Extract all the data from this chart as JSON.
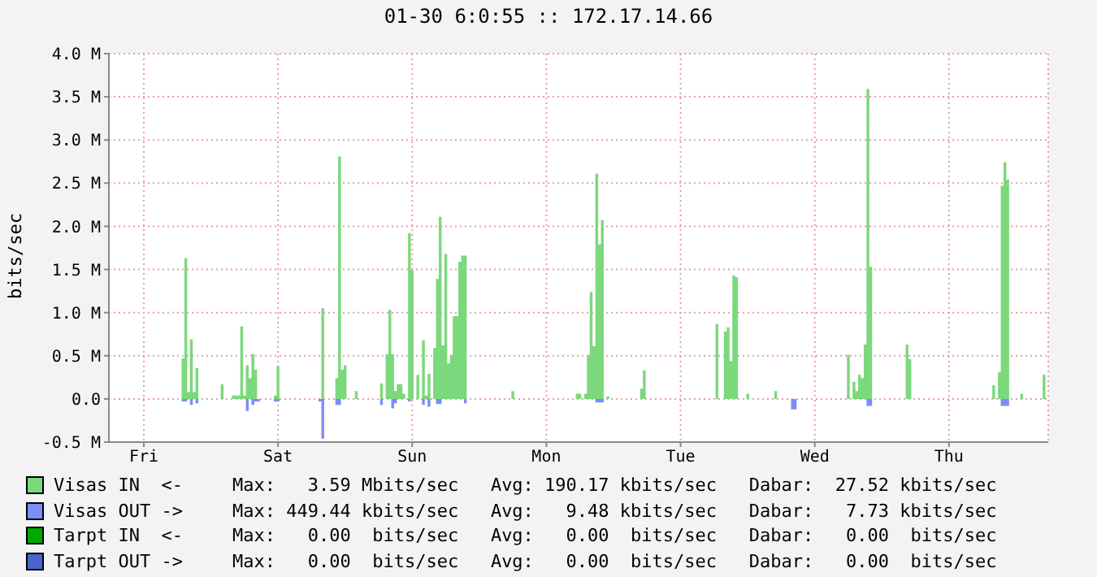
{
  "chart_data": {
    "type": "area",
    "title": "01-30 6:0:55 :: 172.17.14.66",
    "ylabel": "bits/sec",
    "categories": [
      null,
      null,
      null,
      null,
      null,
      null,
      null,
      null,
      null,
      null,
      null,
      null,
      "Fri",
      null,
      null,
      null,
      null,
      null,
      null,
      null,
      null,
      null,
      null,
      null,
      null,
      null,
      null,
      null,
      null,
      null,
      null,
      null,
      null,
      null,
      null,
      null,
      null,
      null,
      null,
      null,
      null,
      null,
      null,
      null,
      null,
      null,
      null,
      null,
      null,
      null,
      null,
      null,
      null,
      null,
      null,
      null,
      null,
      null,
      null,
      null,
      "Sat",
      null,
      null,
      null,
      null,
      null,
      null,
      null,
      null,
      null,
      null,
      null,
      null,
      null,
      null,
      null,
      null,
      null,
      null,
      null,
      null,
      null,
      null,
      null,
      null,
      null,
      null,
      null,
      null,
      null,
      null,
      null,
      null,
      null,
      null,
      null,
      null,
      null,
      null,
      null,
      null,
      null,
      null,
      null,
      null,
      null,
      null,
      null,
      "Sun",
      null,
      null,
      null,
      null,
      null,
      null,
      null,
      null,
      null,
      null,
      null,
      null,
      null,
      null,
      null,
      null,
      null,
      null,
      null,
      null,
      null,
      null,
      null,
      null,
      null,
      null,
      null,
      null,
      null,
      null,
      null,
      null,
      null,
      null,
      null,
      null,
      null,
      null,
      null,
      null,
      null,
      null,
      null,
      null,
      null,
      null,
      null,
      "Mon",
      null,
      null,
      null,
      null,
      null,
      null,
      null,
      null,
      null,
      null,
      null,
      null,
      null,
      null,
      null,
      null,
      null,
      null,
      null,
      null,
      null,
      null,
      null,
      null,
      null,
      null,
      null,
      null,
      null,
      null,
      null,
      null,
      null,
      null,
      null,
      null,
      null,
      null,
      null,
      null,
      null,
      null,
      null,
      null,
      null,
      null,
      null,
      "Tue",
      null,
      null,
      null,
      null,
      null,
      null,
      null,
      null,
      null,
      null,
      null,
      null,
      null,
      null,
      null,
      null,
      null,
      null,
      null,
      null,
      null,
      null,
      null,
      null,
      null,
      null,
      null,
      null,
      null,
      null,
      null,
      null,
      null,
      null,
      null,
      null,
      null,
      null,
      null,
      null,
      null,
      null,
      null,
      null,
      null,
      null,
      null,
      "Wed",
      null,
      null,
      null,
      null,
      null,
      null,
      null,
      null,
      null,
      null,
      null,
      null,
      null,
      null,
      null,
      null,
      null,
      null,
      null,
      null,
      null,
      null,
      null,
      null,
      null,
      null,
      null,
      null,
      null,
      null,
      null,
      null,
      null,
      null,
      null,
      null,
      null,
      null,
      null,
      null,
      null,
      null,
      null,
      null,
      null,
      null,
      null,
      "Thu",
      null,
      null,
      null,
      null,
      null,
      null,
      null,
      null,
      null,
      null,
      null,
      null,
      null,
      null,
      null,
      null,
      null,
      null,
      null,
      null,
      null,
      null,
      null,
      null,
      null,
      null,
      null,
      null,
      null,
      null,
      null,
      null,
      null,
      null,
      null
    ],
    "ylim": [
      -500000,
      4000000
    ],
    "yticks": [
      {
        "value": -500000,
        "label": "-0.5 M"
      },
      {
        "value": 0,
        "label": "0.0"
      },
      {
        "value": 500000,
        "label": "0.5 M"
      },
      {
        "value": 1000000,
        "label": "1.0 M"
      },
      {
        "value": 1500000,
        "label": "1.5 M"
      },
      {
        "value": 2000000,
        "label": "2.0 M"
      },
      {
        "value": 2500000,
        "label": "2.5 M"
      },
      {
        "value": 3000000,
        "label": "3.0 M"
      },
      {
        "value": 3500000,
        "label": "3.5 M"
      },
      {
        "value": 4000000,
        "label": "4.0 M"
      }
    ],
    "grid": true,
    "legend": "bottom",
    "series": [
      {
        "name": "Visas IN  <-",
        "color": "#7cd87c",
        "values": [
          0,
          0,
          0,
          0,
          0,
          0,
          0,
          0,
          0,
          0,
          0,
          0,
          0,
          0,
          0,
          0,
          0,
          0,
          0,
          0,
          0,
          0,
          0,
          0,
          0,
          0,
          470000,
          1630000,
          80000,
          690000,
          80000,
          360000,
          0,
          0,
          0,
          0,
          0,
          0,
          0,
          0,
          170000,
          0,
          0,
          0,
          40000,
          40000,
          40000,
          840000,
          40000,
          390000,
          240000,
          520000,
          340000,
          0,
          0,
          0,
          0,
          0,
          0,
          40000,
          380000,
          0,
          0,
          0,
          0,
          0,
          0,
          0,
          0,
          0,
          0,
          0,
          0,
          0,
          0,
          0,
          1050000,
          0,
          0,
          0,
          0,
          240000,
          2810000,
          340000,
          390000,
          0,
          0,
          0,
          90000,
          0,
          0,
          0,
          0,
          0,
          0,
          0,
          0,
          180000,
          0,
          520000,
          1030000,
          520000,
          90000,
          170000,
          170000,
          60000,
          0,
          1920000,
          1490000,
          0,
          280000,
          0,
          680000,
          40000,
          290000,
          0,
          590000,
          1390000,
          2110000,
          620000,
          1680000,
          410000,
          510000,
          960000,
          960000,
          1590000,
          1660000,
          1660000,
          0,
          0,
          0,
          0,
          0,
          0,
          0,
          0,
          0,
          0,
          0,
          0,
          0,
          0,
          0,
          0,
          90000,
          0,
          0,
          0,
          0,
          0,
          0,
          0,
          0,
          0,
          0,
          0,
          0,
          0,
          0,
          0,
          0,
          0,
          0,
          0,
          0,
          0,
          0,
          60000,
          60000,
          0,
          60000,
          510000,
          1240000,
          610000,
          2610000,
          1790000,
          2070000,
          0,
          30000,
          0,
          0,
          0,
          0,
          0,
          0,
          0,
          0,
          0,
          0,
          0,
          120000,
          330000,
          0,
          0,
          0,
          0,
          0,
          0,
          0,
          0,
          0,
          0,
          0,
          0,
          0,
          0,
          0,
          0,
          0,
          0,
          0,
          0,
          0,
          0,
          0,
          0,
          0,
          870000,
          0,
          0,
          780000,
          830000,
          440000,
          1430000,
          1410000,
          0,
          0,
          0,
          60000,
          0,
          0,
          0,
          0,
          0,
          0,
          0,
          0,
          0,
          90000,
          0,
          0,
          0,
          0,
          0,
          0,
          0,
          0,
          0,
          0,
          0,
          0,
          0,
          0,
          0,
          0,
          0,
          0,
          0,
          0,
          0,
          0,
          0,
          0,
          0,
          510000,
          0,
          200000,
          90000,
          280000,
          240000,
          630000,
          3590000,
          1530000,
          0,
          0,
          0,
          0,
          0,
          0,
          0,
          0,
          0,
          0,
          0,
          0,
          630000,
          460000,
          0,
          0,
          0,
          0,
          0,
          0,
          0,
          0,
          0,
          0,
          0,
          0,
          0,
          0,
          0,
          0,
          0,
          0,
          0,
          0,
          0,
          0,
          0,
          0,
          0,
          0,
          0,
          0,
          0,
          160000,
          0,
          310000,
          2470000,
          2740000,
          2540000,
          0,
          0,
          0,
          0,
          60000,
          0,
          0,
          0,
          0,
          0,
          0,
          0,
          280000,
          0
        ]
      },
      {
        "name": "Visas OUT ->",
        "color": "#7b8ef5",
        "values": [
          0,
          0,
          0,
          0,
          0,
          0,
          0,
          0,
          0,
          0,
          0,
          0,
          0,
          0,
          0,
          0,
          0,
          0,
          0,
          0,
          0,
          0,
          0,
          0,
          0,
          0,
          -30000,
          -30000,
          0,
          -70000,
          0,
          -50000,
          0,
          0,
          0,
          0,
          0,
          0,
          0,
          0,
          0,
          0,
          0,
          0,
          0,
          0,
          0,
          0,
          0,
          -140000,
          0,
          -70000,
          -30000,
          -30000,
          0,
          0,
          0,
          0,
          0,
          -30000,
          -30000,
          0,
          0,
          0,
          0,
          0,
          0,
          0,
          0,
          0,
          0,
          0,
          0,
          0,
          0,
          -30000,
          -460000,
          0,
          0,
          0,
          0,
          -70000,
          -70000,
          0,
          0,
          0,
          0,
          0,
          0,
          0,
          0,
          0,
          0,
          0,
          0,
          0,
          0,
          -70000,
          0,
          0,
          0,
          -110000,
          -50000,
          0,
          0,
          0,
          0,
          -30000,
          0,
          0,
          0,
          0,
          -70000,
          0,
          -90000,
          0,
          0,
          -60000,
          -60000,
          0,
          0,
          0,
          0,
          0,
          0,
          0,
          0,
          -50000,
          0,
          0,
          0,
          0,
          0,
          0,
          0,
          0,
          0,
          0,
          0,
          0,
          0,
          0,
          0,
          0,
          0,
          0,
          0,
          0,
          0,
          0,
          0,
          0,
          0,
          0,
          0,
          0,
          0,
          0,
          0,
          0,
          0,
          0,
          0,
          0,
          0,
          0,
          0,
          0,
          0,
          0,
          0,
          0,
          0,
          0,
          -40000,
          -40000,
          -40000,
          0,
          0,
          0,
          0,
          0,
          0,
          0,
          0,
          0,
          0,
          0,
          0,
          0,
          0,
          0,
          0,
          0,
          0,
          0,
          0,
          0,
          0,
          0,
          0,
          0,
          0,
          0,
          0,
          0,
          0,
          0,
          0,
          0,
          0,
          0,
          0,
          0,
          0,
          0,
          0,
          0,
          0,
          0,
          0,
          0,
          0,
          0,
          0,
          0,
          0,
          0,
          0,
          0,
          0,
          0,
          0,
          0,
          0,
          0,
          0,
          0,
          0,
          0,
          0,
          0,
          0,
          0,
          -120000,
          -120000,
          0,
          0,
          0,
          0,
          0,
          0,
          0,
          0,
          0,
          0,
          0,
          0,
          0,
          0,
          0,
          0,
          0,
          0,
          0,
          0,
          0,
          0,
          0,
          0,
          0,
          -80000,
          -80000,
          0,
          0,
          0,
          0,
          0,
          0,
          0,
          0,
          0,
          0,
          0,
          0,
          0,
          0,
          0,
          0,
          0,
          0,
          0,
          0,
          0,
          0,
          0,
          0,
          0,
          0,
          0,
          0,
          0,
          0,
          0,
          0,
          0,
          0,
          0,
          0,
          0,
          0,
          0,
          0,
          0,
          0,
          0,
          0,
          0,
          0,
          -80000,
          -80000,
          -80000,
          0,
          0,
          0,
          0,
          0,
          0,
          0,
          0,
          0,
          0,
          0,
          0,
          0,
          0
        ]
      },
      {
        "name": "Tarpt IN  <-",
        "color": "#00a800",
        "values": [
          null,
          null,
          null,
          null,
          null,
          null,
          null,
          null,
          null,
          null,
          null,
          null,
          null,
          null,
          null,
          null,
          null,
          null,
          null,
          null,
          null,
          null,
          null,
          null,
          null,
          null,
          null,
          null,
          null,
          null,
          null,
          null,
          null,
          null,
          null,
          null,
          null,
          null,
          null,
          null,
          null,
          null,
          null,
          null,
          null,
          null,
          null,
          null,
          null,
          null,
          null,
          null,
          null,
          null,
          null,
          null,
          null,
          null,
          null,
          null,
          null,
          null,
          null,
          null,
          null,
          null,
          null,
          null,
          null,
          null,
          null,
          null,
          null,
          null,
          null,
          null,
          null,
          null,
          null,
          null,
          null,
          null,
          null,
          null,
          null,
          null,
          null,
          null,
          null,
          null,
          null,
          null,
          null,
          null,
          null,
          null,
          null,
          null,
          null,
          null,
          null,
          null,
          null,
          null,
          null,
          null,
          null,
          null,
          null,
          null,
          null,
          null,
          null,
          null,
          null,
          null,
          null,
          null,
          null,
          null,
          null,
          null,
          null,
          null,
          null,
          null,
          null,
          null,
          null,
          null,
          null,
          null,
          null,
          null,
          null,
          null,
          null,
          null,
          null,
          null,
          null,
          null,
          null,
          null,
          null,
          null,
          null,
          null,
          null,
          null,
          null,
          null,
          null,
          null,
          null,
          null,
          null,
          null,
          null,
          null,
          null,
          null,
          null,
          null,
          null,
          null,
          null,
          null,
          null,
          null,
          null,
          null,
          null,
          null,
          null,
          null,
          null,
          null,
          null,
          null,
          null,
          null,
          null,
          null,
          null,
          null,
          null,
          null,
          null,
          null,
          null,
          null,
          null,
          null,
          null,
          null,
          null,
          null,
          null,
          null,
          null,
          null,
          null,
          null,
          null,
          null,
          null,
          null,
          null,
          null,
          null,
          null,
          null,
          null,
          null,
          null,
          null,
          null,
          null,
          null,
          null,
          null,
          null,
          null,
          null,
          null,
          null,
          null,
          null,
          null,
          null,
          null,
          null,
          null,
          null,
          null,
          null,
          null,
          null,
          null,
          null,
          null,
          null,
          null,
          null,
          null,
          null,
          null,
          null,
          null,
          null,
          null,
          null,
          null,
          null,
          null,
          null,
          null,
          null,
          null,
          null,
          null,
          null,
          null,
          null,
          null,
          null,
          null,
          null,
          null,
          null,
          null,
          null,
          null,
          null,
          null,
          null,
          null,
          null,
          null,
          null,
          null,
          null,
          null,
          null,
          null,
          null,
          null,
          null,
          null,
          null,
          null,
          null,
          null,
          null,
          null,
          null,
          null,
          null,
          null,
          null,
          null,
          null,
          null,
          null,
          null,
          null,
          null,
          null,
          null,
          null,
          null,
          null,
          null,
          null,
          null,
          null,
          null,
          null,
          null,
          null,
          null,
          null,
          null,
          null,
          null,
          null,
          null,
          null,
          null,
          null,
          null,
          null,
          null,
          null,
          null
        ]
      },
      {
        "name": "Tarpt OUT ->",
        "color": "#4a66cc",
        "values": [
          null,
          null,
          null,
          null,
          null,
          null,
          null,
          null,
          null,
          null,
          null,
          null,
          null,
          null,
          null,
          null,
          null,
          null,
          null,
          null,
          null,
          null,
          null,
          null,
          null,
          null,
          null,
          null,
          null,
          null,
          null,
          null,
          null,
          null,
          null,
          null,
          null,
          null,
          null,
          null,
          null,
          null,
          null,
          null,
          null,
          null,
          null,
          null,
          null,
          null,
          null,
          null,
          null,
          null,
          null,
          null,
          null,
          null,
          null,
          null,
          null,
          null,
          null,
          null,
          null,
          null,
          null,
          null,
          null,
          null,
          null,
          null,
          null,
          null,
          null,
          null,
          null,
          null,
          null,
          null,
          null,
          null,
          null,
          null,
          null,
          null,
          null,
          null,
          null,
          null,
          null,
          null,
          null,
          null,
          null,
          null,
          null,
          null,
          null,
          null,
          null,
          null,
          null,
          null,
          null,
          null,
          null,
          null,
          null,
          null,
          null,
          null,
          null,
          null,
          null,
          null,
          null,
          null,
          null,
          null,
          null,
          null,
          null,
          null,
          null,
          null,
          null,
          null,
          null,
          null,
          null,
          null,
          null,
          null,
          null,
          null,
          null,
          null,
          null,
          null,
          null,
          null,
          null,
          null,
          null,
          null,
          null,
          null,
          null,
          null,
          null,
          null,
          null,
          null,
          null,
          null,
          null,
          null,
          null,
          null,
          null,
          null,
          null,
          null,
          null,
          null,
          null,
          null,
          null,
          null,
          null,
          null,
          null,
          null,
          null,
          null,
          null,
          null,
          null,
          null,
          null,
          null,
          null,
          null,
          null,
          null,
          null,
          null,
          null,
          null,
          null,
          null,
          null,
          null,
          null,
          null,
          null,
          null,
          null,
          null,
          null,
          null,
          null,
          null,
          null,
          null,
          null,
          null,
          null,
          null,
          null,
          null,
          null,
          null,
          null,
          null,
          null,
          null,
          null,
          null,
          null,
          null,
          null,
          null,
          null,
          null,
          null,
          null,
          null,
          null,
          null,
          null,
          null,
          null,
          null,
          null,
          null,
          null,
          null,
          null,
          null,
          null,
          null,
          null,
          null,
          null,
          null,
          null,
          null,
          null,
          null,
          null,
          null,
          null,
          null,
          null,
          null,
          null,
          null,
          null,
          null,
          null,
          null,
          null,
          null,
          null,
          null,
          null,
          null,
          null,
          null,
          null,
          null,
          null,
          null,
          null,
          null,
          null,
          null,
          null,
          null,
          null,
          null,
          null,
          null,
          null,
          null,
          null,
          null,
          null,
          null,
          null,
          null,
          null,
          null,
          null,
          null,
          null,
          null,
          null,
          null,
          null,
          null,
          null,
          null,
          null,
          null,
          null,
          null,
          null,
          null,
          null,
          null,
          null,
          null,
          null,
          null,
          null,
          null,
          null,
          null,
          null,
          null,
          null,
          null,
          null,
          null,
          null,
          null,
          null,
          null,
          null,
          null,
          null,
          null,
          null
        ]
      }
    ],
    "annotations": [
      "Max:   3.59 Mbits/sec   Avg: 190.17 kbits/sec   Dabar:  27.52 kbits/sec",
      "Max: 449.44 kbits/sec   Avg:   9.48 kbits/sec   Dabar:   7.73 kbits/sec",
      "Max:   0.00  bits/sec   Avg:   0.00  bits/sec   Dabar:   0.00  bits/sec",
      "Max:   0.00  bits/sec   Avg:   0.00  bits/sec   Dabar:   0.00  bits/sec"
    ]
  }
}
